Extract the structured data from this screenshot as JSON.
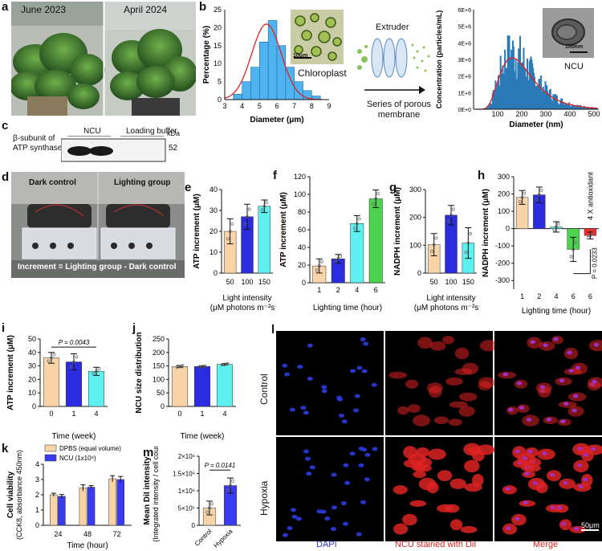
{
  "panels": {
    "a": {
      "letter": "a",
      "label_left": "June 2023",
      "label_right": "April 2024"
    },
    "b": {
      "letter": "b",
      "inset_label": "Chloroplast",
      "scale_bar": "10μm",
      "extruder": "Extruder",
      "porous": "Series of porous membrane",
      "ncu_label": "NCU",
      "ncu_scale": "100nm"
    },
    "c": {
      "letter": "c",
      "lane_ncu": "NCU",
      "lane_buffer": "Loading buffer",
      "kda": "kDa",
      "band_size": "52",
      "protein_line1": "β-subunit of",
      "protein_line2": "ATP synthase"
    },
    "d": {
      "letter": "d",
      "left_label": "Dark control",
      "right_label": "Lighting group",
      "formula": "Increment = Lighting group - Dark control"
    },
    "e": {
      "letter": "e"
    },
    "f": {
      "letter": "f"
    },
    "g": {
      "letter": "g"
    },
    "h": {
      "letter": "h"
    },
    "i": {
      "letter": "i"
    },
    "j": {
      "letter": "j"
    },
    "k": {
      "letter": "k"
    },
    "l": {
      "letter": "l"
    },
    "m": {
      "letter": "m"
    }
  },
  "microscopy": {
    "rows": [
      "Control",
      "Hypoxia"
    ],
    "columns": [
      "DAPI",
      "NCU stained with DiI",
      "Merge"
    ],
    "scale_bar": "50μm",
    "column_colors": [
      "#2233cc",
      "#dd2222",
      "#dd2222"
    ]
  },
  "chart_data": [
    {
      "id": "b-hist",
      "type": "bar",
      "xlabel": "Diameter (μm)",
      "ylabel": "Percentage (%)",
      "xlim": [
        3,
        9
      ],
      "ylim": [
        0,
        25
      ],
      "xticks": [
        3,
        4,
        5,
        6,
        7,
        8,
        9
      ],
      "yticks": [
        0,
        5,
        10,
        15,
        20,
        25
      ],
      "bin_starts": [
        3.5,
        4.0,
        4.5,
        5.0,
        5.5,
        6.0,
        6.5,
        7.0,
        7.5,
        8.0
      ],
      "values": [
        1.5,
        5,
        9,
        16,
        22,
        15,
        9,
        5,
        2.5,
        1
      ],
      "fit": {
        "type": "gaussian",
        "mean": 5.4,
        "sd": 0.85,
        "peak": 21
      }
    },
    {
      "id": "b-nta",
      "type": "bar",
      "xlabel": "Diameter (nm)",
      "ylabel": "Concentration (particles/mL)",
      "xlim": [
        0,
        520
      ],
      "ylim": [
        0,
        6000000
      ],
      "xticks": [
        100,
        200,
        300,
        400,
        500
      ],
      "yticks": [
        "0E+0",
        "1E+6",
        "2E+6",
        "3E+6",
        "4E+6",
        "5E+6",
        "6E+6"
      ],
      "fit": {
        "type": "lognormal-like",
        "mode_nm": 160,
        "peak": 3100000
      }
    },
    {
      "id": "e",
      "type": "bar",
      "ylabel": "ATP increment (μM)",
      "xlabel": "Light intensity (μM photons m⁻²s⁻¹)",
      "categories": [
        "50",
        "100",
        "150"
      ],
      "values": [
        20,
        27,
        32
      ],
      "errors": [
        6,
        6,
        3
      ],
      "ylim": [
        0,
        40
      ],
      "yticks": [
        0,
        10,
        20,
        30,
        40
      ],
      "colors": [
        "#f9d4a8",
        "#2b2be0",
        "#5ff0f0"
      ]
    },
    {
      "id": "f",
      "type": "bar",
      "ylabel": "ATP increment (μM)",
      "xlabel": "Lighting time (hour)",
      "categories": [
        "1",
        "2",
        "4",
        "6"
      ],
      "values": [
        19,
        27,
        67,
        95
      ],
      "errors": [
        8,
        5,
        9,
        10
      ],
      "ylim": [
        0,
        120
      ],
      "yticks": [
        0,
        20,
        40,
        60,
        80,
        100,
        120
      ],
      "colors": [
        "#f9d4a8",
        "#2b2be0",
        "#5ff0f0",
        "#4dd34d"
      ]
    },
    {
      "id": "g",
      "type": "bar",
      "ylabel": "NADPH increment (μM)",
      "xlabel": "Light intensity (μM photons m⁻²s⁻¹)",
      "categories": [
        "50",
        "100",
        "150"
      ],
      "values": [
        102,
        208,
        108
      ],
      "errors": [
        40,
        35,
        55
      ],
      "ylim": [
        0,
        300
      ],
      "yticks": [
        0,
        100,
        200,
        300
      ],
      "colors": [
        "#f9d4a8",
        "#2b2be0",
        "#5ff0f0"
      ]
    },
    {
      "id": "h",
      "type": "bar",
      "ylabel": "NADPH increment (μM)",
      "xlabel": "Lighting time (hour)",
      "categories": [
        "1",
        "2",
        "4",
        "6",
        "6"
      ],
      "values": [
        180,
        195,
        10,
        -120,
        -40
      ],
      "errors": [
        40,
        45,
        30,
        70,
        20
      ],
      "ylim": [
        -350,
        300
      ],
      "yticks": [
        300,
        200,
        100,
        0,
        -100,
        -200,
        -300
      ],
      "colors": [
        "#f9d4a8",
        "#2b2be0",
        "#5ff0f0",
        "#4dd34d",
        "#f03030"
      ],
      "annotation": "4 X antioxidant",
      "pvalue": "P = 0.0233"
    },
    {
      "id": "i",
      "type": "bar",
      "ylabel": "ATP increment (μM)",
      "xlabel": "Time (week)",
      "categories": [
        "0",
        "1",
        "4"
      ],
      "values": [
        36,
        33,
        26
      ],
      "errors": [
        4,
        6,
        3
      ],
      "ylim": [
        0,
        50
      ],
      "yticks": [
        0,
        10,
        20,
        30,
        40,
        50
      ],
      "colors": [
        "#f9d4a8",
        "#2b2be0",
        "#5ff0f0"
      ],
      "pvalue": "P = 0.0043"
    },
    {
      "id": "j",
      "type": "bar",
      "ylabel": "NCU size distribution",
      "xlabel": "Time (week)",
      "categories": [
        "0",
        "1",
        "4"
      ],
      "values": [
        148,
        148,
        156
      ],
      "errors": [
        4,
        3,
        3
      ],
      "ylim": [
        0,
        250
      ],
      "yticks": [
        0,
        50,
        100,
        150,
        200,
        250
      ],
      "colors": [
        "#f9d4a8",
        "#2b2be0",
        "#5ff0f0"
      ]
    },
    {
      "id": "k",
      "type": "bar",
      "ylabel": "Cell viability",
      "ylabel2": "(CCK8, absorbance 450nm)",
      "xlabel": "Time (hour)",
      "categories": [
        "24",
        "48",
        "72"
      ],
      "ylim": [
        0,
        4
      ],
      "yticks": [
        0,
        1,
        2,
        3,
        4
      ],
      "series": [
        {
          "name": "DPBS (equal volume)",
          "color": "#f9d4a8",
          "values": [
            2.0,
            2.45,
            3.05
          ],
          "errors": [
            0.1,
            0.2,
            0.2
          ]
        },
        {
          "name": "NCU (1x10⁸)",
          "color": "#3a3af0",
          "values": [
            1.9,
            2.5,
            3.0
          ],
          "errors": [
            0.12,
            0.1,
            0.2
          ]
        }
      ]
    },
    {
      "id": "m",
      "type": "bar",
      "ylabel": "Mean DiI intensity",
      "ylabel2": "(Integrated intensity / cell count)",
      "categories": [
        "Control",
        "Hypoxia"
      ],
      "values": [
        500000,
        1150000
      ],
      "errors": [
        200000,
        220000
      ],
      "ylim": [
        0,
        2000000
      ],
      "yticks": [
        "0",
        "5×10⁵",
        "1×10⁶",
        "1.5×10⁶",
        "2×10⁶"
      ],
      "colors": [
        "#f9d4a8",
        "#3a3af0"
      ],
      "pvalue": "P = 0.0141"
    }
  ]
}
